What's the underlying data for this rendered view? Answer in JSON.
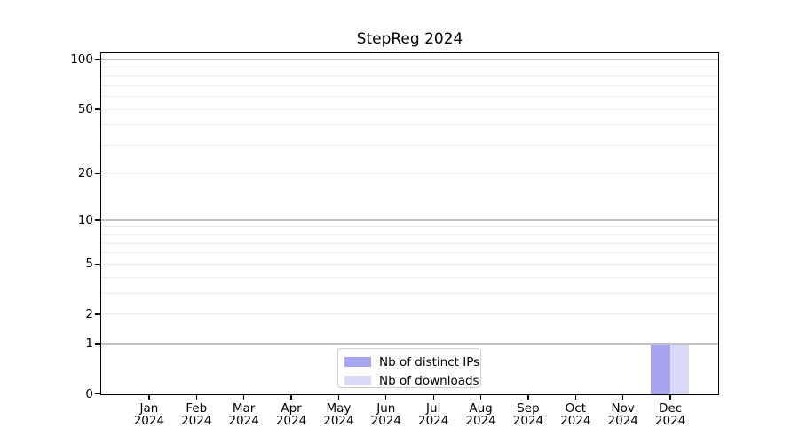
{
  "figure": {
    "title": "StepReg 2024"
  },
  "chart_data": {
    "type": "bar",
    "title": "StepReg 2024",
    "categories": [
      "Jan",
      "Feb",
      "Mar",
      "Apr",
      "May",
      "Jun",
      "Jul",
      "Aug",
      "Sep",
      "Oct",
      "Nov",
      "Dec"
    ],
    "category_year": "2024",
    "series": [
      {
        "name": "Nb of distinct IPs",
        "color": "#a5a5f0",
        "values": [
          0,
          0,
          0,
          0,
          0,
          0,
          0,
          0,
          0,
          0,
          0,
          1
        ]
      },
      {
        "name": "Nb of downloads",
        "color": "#d9d9f8",
        "values": [
          0,
          0,
          0,
          0,
          0,
          0,
          0,
          0,
          0,
          0,
          0,
          1
        ]
      }
    ],
    "xlabel": "",
    "ylabel": "",
    "yscale": "log1p",
    "ylim": [
      0,
      107
    ],
    "ytick_labels": [
      0,
      1,
      2,
      5,
      10,
      20,
      50,
      100
    ],
    "major_gridlines": [
      1,
      10,
      100
    ],
    "minor_gridlines": [
      2,
      3,
      4,
      5,
      6,
      7,
      8,
      9,
      20,
      30,
      40,
      50,
      60,
      70,
      80,
      90
    ],
    "grid": true,
    "legend_position": "lower-center"
  },
  "legend": {
    "items": [
      {
        "label": "Nb of distinct IPs",
        "color": "#a5a5f0"
      },
      {
        "label": "Nb of downloads",
        "color": "#d9d9f8"
      }
    ]
  },
  "colors": {
    "grid_major": "#c3c3c3",
    "grid_minor": "#ededed",
    "spine": "#000000",
    "legend_border": "#d0d0d0",
    "background": "#ffffff"
  }
}
